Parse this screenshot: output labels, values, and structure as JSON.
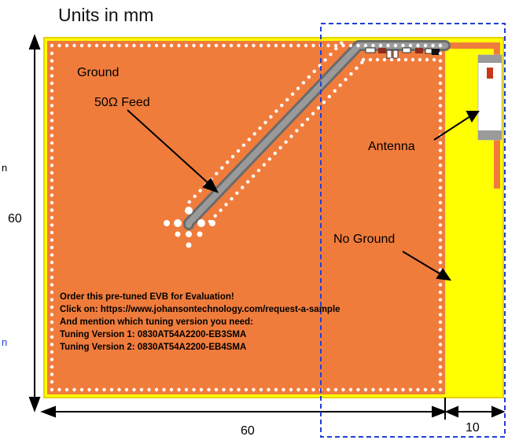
{
  "title": "Units in mm",
  "labels": {
    "ground": "Ground",
    "feed": "50Ω Feed",
    "antenna": "Antenna",
    "no_ground": "No Ground"
  },
  "dimensions": {
    "height": "60",
    "width": "60",
    "extension": "10"
  },
  "order_note": [
    "Order this pre-tuned EVB for Evaluation!",
    "Click on: https://www.johansontechnology.com/request-a-sample",
    "And mention which tuning version you need:",
    "Tuning Version 1: 0830AT54A2200-EB3SMA",
    "Tuning Version 2: 0830AT54A2200-EB4SMA"
  ],
  "edge_fragments": [
    "n",
    "n"
  ],
  "colors": {
    "board_orange": "#f07c3c",
    "no_ground_yellow": "#ffff00",
    "feed_gray": "#8a8a8a",
    "outline_blue": "#1f3fd6"
  }
}
